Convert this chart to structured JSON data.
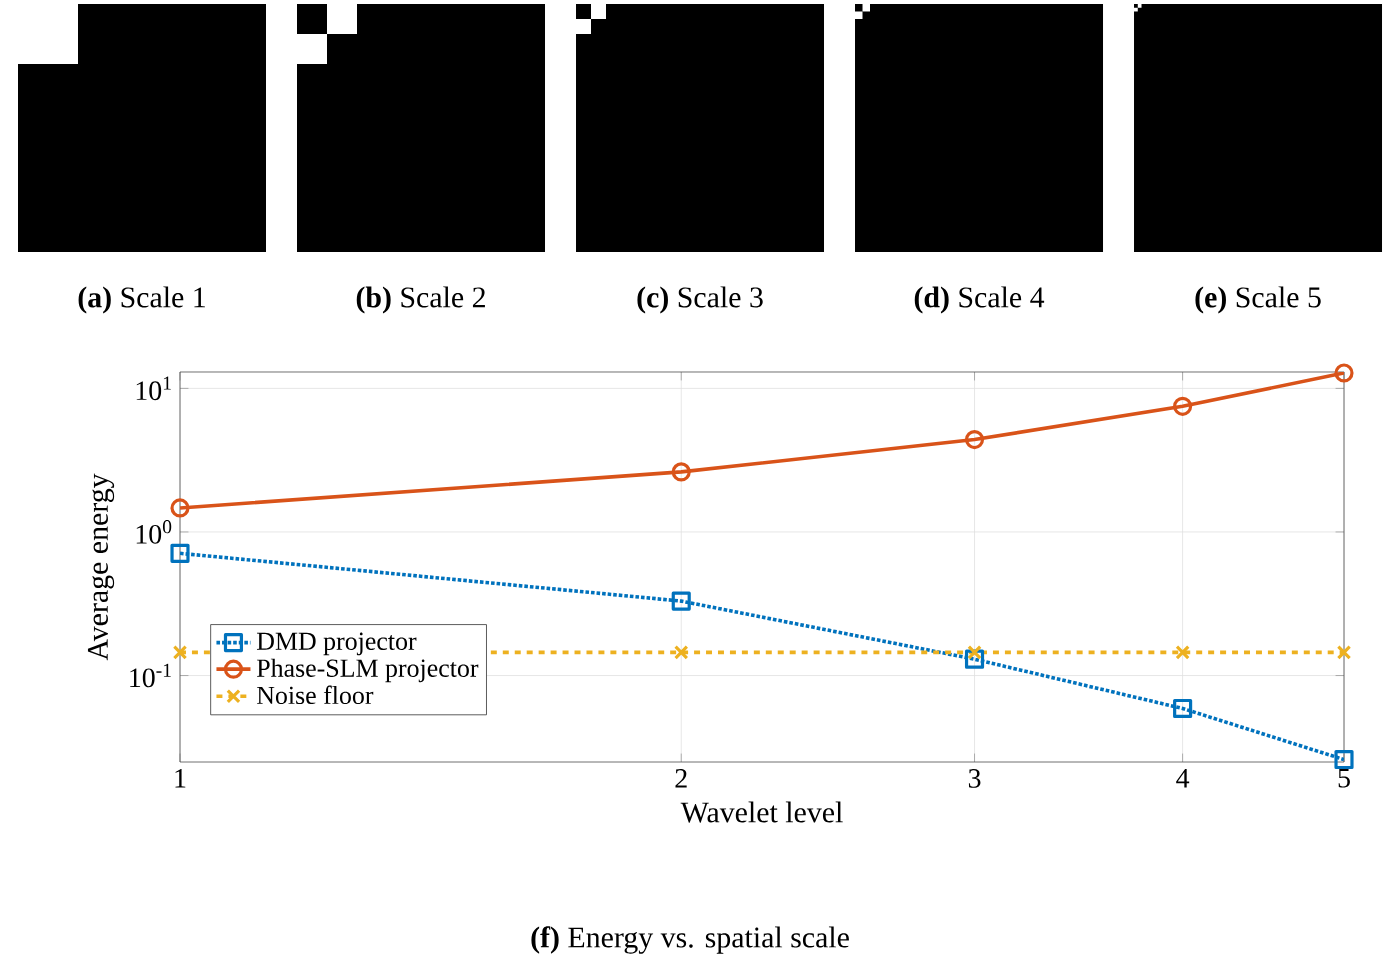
{
  "chart_data": {
    "type": "line",
    "xlabel": "Wavelet level",
    "ylabel": "Average energy",
    "annotations": [
      "**(a)** Scale 1",
      "**(b)** Scale 2",
      "**(c)** Scale 3",
      "**(d)** Scale 4",
      "**(e)** Scale 5",
      "**(f)** Energy vs. spatial scale"
    ],
    "x": [
      1,
      2,
      3,
      4,
      5
    ],
    "series": [
      {
        "name": "DMD projector",
        "color": "#0072bd",
        "marker": "square",
        "line_style": "dotted",
        "values": [
          0.71,
          0.33,
          0.13,
          0.059,
          0.026
        ]
      },
      {
        "name": "Phase-SLM projector",
        "color": "#d95319",
        "marker": "circle",
        "line_style": "solid",
        "values": [
          1.47,
          2.62,
          4.4,
          7.5,
          12.8
        ]
      },
      {
        "name": "Noise floor",
        "color": "#edb120",
        "marker": "cross",
        "line_style": "dashed",
        "values": [
          0.145,
          0.145,
          0.145,
          0.145,
          0.145
        ]
      }
    ],
    "log": "xy",
    "xlim": [
      1,
      5
    ],
    "ylim": [
      0.025,
      13
    ],
    "xticks": [
      1,
      2,
      3,
      4,
      5
    ],
    "yticks": [
      {
        "value": 0.1,
        "label": "10$^{-1}$"
      },
      {
        "value": 1,
        "label": "10$^{0}$"
      },
      {
        "value": 10,
        "label": "10$^{1}$"
      }
    ],
    "grid": true,
    "legend": "bottom left"
  }
}
